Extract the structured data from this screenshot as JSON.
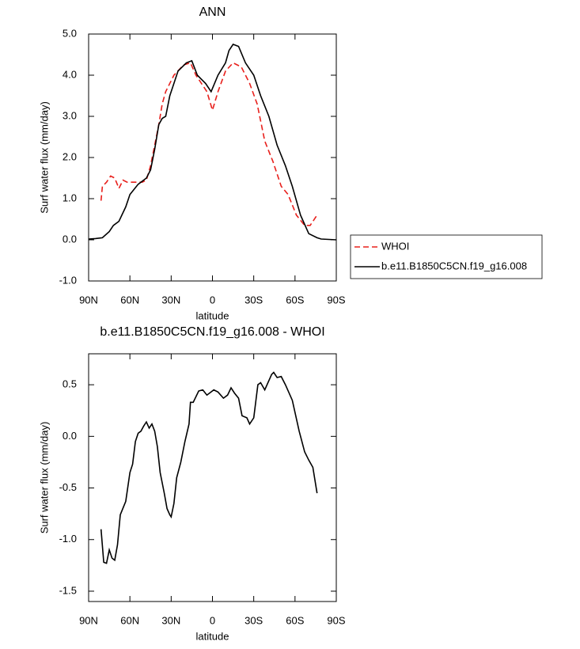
{
  "chart_data": [
    {
      "type": "line",
      "title": "ANN",
      "y_label": "Surf water flux (mm/day)",
      "x_label": "latitude",
      "xlim": [
        90,
        -90
      ],
      "xticks": [
        {
          "value": 90,
          "label": "90N"
        },
        {
          "value": 60,
          "label": "60N"
        },
        {
          "value": 30,
          "label": "30N"
        },
        0,
        {
          "value": -30,
          "label": "30S"
        },
        {
          "value": -60,
          "label": "60S"
        },
        {
          "value": -90,
          "label": "90S"
        }
      ],
      "ylim": [
        -1,
        5
      ],
      "yticks": [
        {
          "value": -1,
          "label": "-1.0"
        },
        {
          "value": 0,
          "label": "0.0"
        },
        {
          "value": 1,
          "label": "1.0"
        },
        {
          "value": 2,
          "label": "2.0"
        },
        {
          "value": 3,
          "label": "3.0"
        },
        {
          "value": 4,
          "label": "4.0"
        },
        {
          "value": 5,
          "label": "5.0"
        }
      ],
      "legend": "right",
      "series": [
        {
          "name": "WHOI",
          "color": "#e8201c",
          "line_style": "dashed",
          "x": [
            81,
            80,
            77,
            74,
            71,
            68,
            65,
            62,
            57,
            51,
            48,
            45,
            39,
            36.5,
            34,
            28,
            21,
            16,
            12,
            8,
            4,
            0,
            -4,
            -9.5,
            -15,
            -21,
            -27,
            -32.5,
            -38,
            -44,
            -50,
            -55,
            -61,
            -67,
            -71,
            -76
          ],
          "values": [
            0.95,
            1.3,
            1.4,
            1.55,
            1.5,
            1.25,
            1.45,
            1.4,
            1.4,
            1.4,
            1.45,
            1.8,
            2.8,
            3.3,
            3.6,
            4.0,
            4.25,
            4.3,
            4.0,
            3.8,
            3.6,
            3.15,
            3.6,
            4.1,
            4.3,
            4.2,
            3.8,
            3.3,
            2.4,
            1.9,
            1.3,
            1.1,
            0.6,
            0.35,
            0.35,
            0.6
          ]
        },
        {
          "name": "b.e11.B1850C5CN.f19_g16.008",
          "color": "#000000",
          "line_style": "solid",
          "x": [
            90,
            85,
            80,
            75,
            72,
            68,
            63,
            60,
            54,
            48,
            45,
            42,
            39,
            36.5,
            34,
            31,
            25,
            19,
            15,
            11,
            5,
            1,
            -4,
            -9.5,
            -12,
            -15,
            -19,
            -24,
            -30,
            -35,
            -41,
            -47,
            -53,
            -58,
            -64,
            -70,
            -76,
            -79,
            -90
          ],
          "values": [
            0.02,
            0.03,
            0.05,
            0.2,
            0.35,
            0.45,
            0.8,
            1.1,
            1.35,
            1.5,
            1.7,
            2.2,
            2.8,
            2.95,
            3.0,
            3.5,
            4.1,
            4.3,
            4.35,
            4.0,
            3.8,
            3.6,
            4.0,
            4.3,
            4.6,
            4.75,
            4.7,
            4.3,
            4.0,
            3.5,
            3.0,
            2.3,
            1.8,
            1.3,
            0.6,
            0.15,
            0.05,
            0.02,
            0.0
          ]
        }
      ]
    },
    {
      "type": "line",
      "title": "b.e11.B1850C5CN.f19_g16.008 - WHOI",
      "y_label": "Surf water flux (mm/day)",
      "x_label": "latitude",
      "xlim": [
        90,
        -90
      ],
      "xticks": [
        {
          "value": 90,
          "label": "90N"
        },
        {
          "value": 60,
          "label": "60N"
        },
        {
          "value": 30,
          "label": "30N"
        },
        0,
        {
          "value": -30,
          "label": "30S"
        },
        {
          "value": -60,
          "label": "60S"
        },
        {
          "value": -90,
          "label": "90S"
        }
      ],
      "ylim": [
        -1.6,
        0.8
      ],
      "yticks": [
        -1.5,
        {
          "value": -1,
          "label": "-1.0"
        },
        -0.5,
        {
          "value": 0,
          "label": "0.0"
        },
        0.5
      ],
      "color": "#000000",
      "x": [
        81,
        79,
        77,
        75,
        73,
        71,
        69,
        67,
        63,
        60,
        58,
        56,
        54,
        52,
        50,
        48,
        46,
        44,
        42,
        40,
        38,
        35,
        33,
        31,
        30,
        28,
        26,
        23,
        20,
        17,
        16,
        14,
        10,
        7,
        4,
        -1,
        -4,
        -8,
        -11,
        -13.5,
        -16,
        -19,
        -21.5,
        -25,
        -27,
        -30,
        -33,
        -35,
        -38,
        -43,
        -44.5,
        -47,
        -50,
        -53,
        -58,
        -63,
        -67,
        -70,
        -73,
        -76
      ],
      "values": [
        -0.9,
        -1.22,
        -1.23,
        -1.1,
        -1.18,
        -1.2,
        -1.05,
        -0.76,
        -0.63,
        -0.35,
        -0.27,
        -0.05,
        0.03,
        0.05,
        0.1,
        0.14,
        0.08,
        0.12,
        0.05,
        -0.1,
        -0.35,
        -0.55,
        -0.7,
        -0.76,
        -0.78,
        -0.65,
        -0.4,
        -0.25,
        -0.05,
        0.12,
        0.33,
        0.33,
        0.44,
        0.45,
        0.4,
        0.45,
        0.43,
        0.37,
        0.4,
        0.47,
        0.42,
        0.37,
        0.2,
        0.18,
        0.12,
        0.18,
        0.5,
        0.52,
        0.45,
        0.6,
        0.62,
        0.57,
        0.58,
        0.5,
        0.35,
        0.05,
        -0.15,
        -0.23,
        -0.3,
        -0.55
      ]
    }
  ]
}
